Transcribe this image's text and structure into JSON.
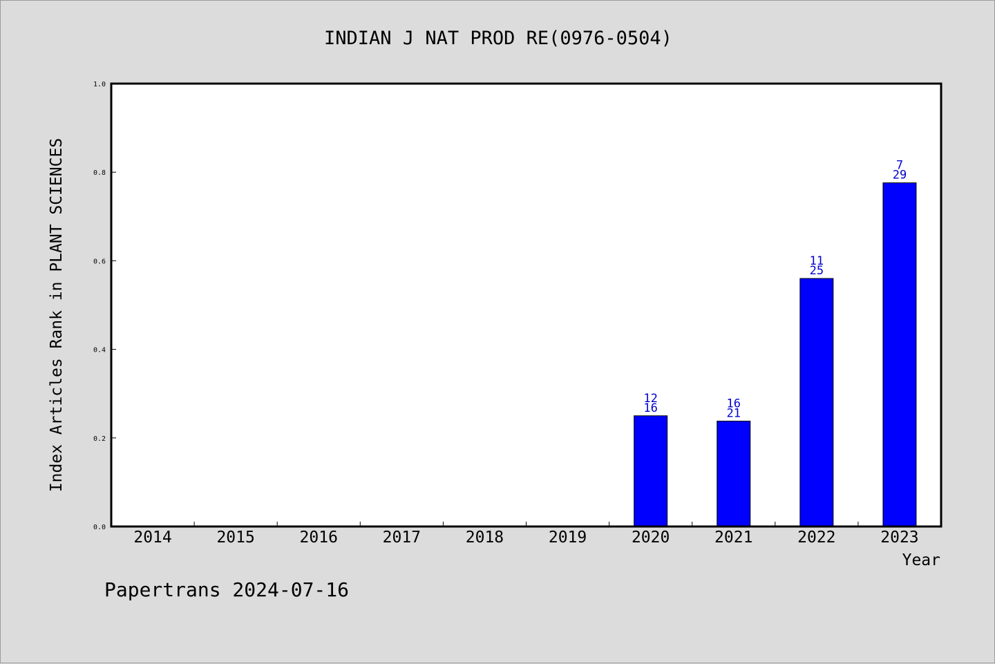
{
  "chart_data": {
    "type": "bar",
    "title": "INDIAN J NAT PROD RE(0976-0504)",
    "xlabel": "Year",
    "ylabel": "Index Articles Rank in PLANT SCIENCES",
    "categories": [
      "2014",
      "2015",
      "2016",
      "2017",
      "2018",
      "2019",
      "2020",
      "2021",
      "2022",
      "2023"
    ],
    "values": [
      null,
      null,
      null,
      null,
      null,
      null,
      0.25,
      0.238,
      0.56,
      0.776
    ],
    "bar_labels": [
      null,
      null,
      null,
      null,
      null,
      null,
      {
        "top": "12",
        "bottom": "16"
      },
      {
        "top": "16",
        "bottom": "21"
      },
      {
        "top": "11",
        "bottom": "25"
      },
      {
        "top": "7",
        "bottom": "29"
      }
    ],
    "ylim": [
      0,
      1.0
    ],
    "yticks": [
      "0.0",
      "0.2",
      "0.4",
      "0.6",
      "0.8",
      "1.0"
    ],
    "grid": false,
    "bar_color": "#0000ff",
    "label_color": "#0000cc"
  },
  "footer": {
    "text": "Papertrans 2024-07-16"
  }
}
